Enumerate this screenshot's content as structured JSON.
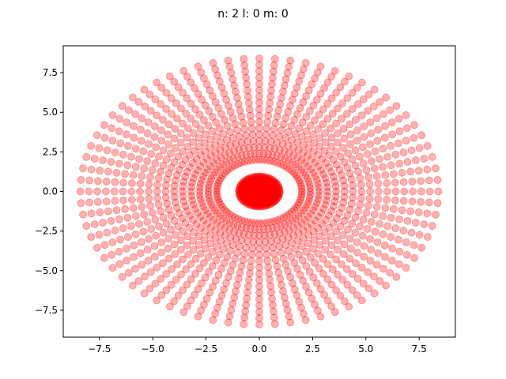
{
  "chart_data": {
    "type": "scatter",
    "title": "n: 2 l: 0 m: 0",
    "xlabel": "",
    "ylabel": "",
    "xlim": [
      -9.2,
      9.2
    ],
    "ylim": [
      -9.2,
      9.2
    ],
    "x_ticks": [
      -7.5,
      -5.0,
      -2.5,
      0.0,
      2.5,
      5.0,
      7.5
    ],
    "y_ticks": [
      -7.5,
      -5.0,
      -2.5,
      0.0,
      2.5,
      5.0,
      7.5
    ],
    "x_tick_labels": [
      "−7.5",
      "−5.0",
      "−2.5",
      "0.0",
      "2.5",
      "5.0",
      "7.5"
    ],
    "y_tick_labels": [
      "−7.5",
      "−5.0",
      "−2.5",
      "0.0",
      "2.5",
      "5.0",
      "7.5"
    ],
    "grid": false,
    "legend": "none",
    "marker_color": "#ff0000",
    "marker_alpha": 0.3,
    "series": [
      {
        "angles_per_ring": 72,
        "outer_ring_radii": [
          2.0,
          2.4,
          2.8,
          3.2,
          3.6,
          4.0,
          4.4,
          4.8,
          5.2,
          5.6,
          6.0,
          6.4,
          6.8,
          7.2,
          7.6,
          8.0,
          8.4
        ],
        "inner_ring_radii": [
          0.05,
          0.15,
          0.25,
          0.35,
          0.45,
          0.55,
          0.65,
          0.75,
          0.85,
          0.95
        ]
      }
    ]
  }
}
